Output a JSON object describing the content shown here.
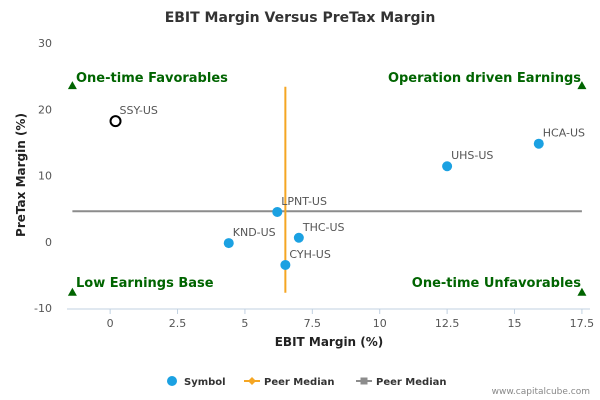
{
  "chart_data": {
    "type": "scatter",
    "title": "EBIT Margin Versus PreTax Margin",
    "xlabel": "EBIT Margin (%)",
    "ylabel": "PreTax Margin (%)",
    "xlim": [
      -1.6,
      17.8
    ],
    "ylim": [
      -10,
      30
    ],
    "xticks": [
      0,
      2.5,
      5,
      7.5,
      10,
      12.5,
      15,
      17.5
    ],
    "xtick_labels": [
      "0",
      "2.5",
      "5",
      "7.5",
      "10",
      "12.5",
      "15",
      "17.5"
    ],
    "yticks": [
      -10,
      0,
      10,
      20,
      30
    ],
    "ytick_labels": [
      "-10",
      "0",
      "10",
      "20",
      "30"
    ],
    "grid": false,
    "points": [
      {
        "label": "SSY-US",
        "x": 0.2,
        "y": 18.2,
        "style": "hollow"
      },
      {
        "label": "HCA-US",
        "x": 15.9,
        "y": 14.8,
        "style": "filled"
      },
      {
        "label": "UHS-US",
        "x": 12.5,
        "y": 11.4,
        "style": "filled"
      },
      {
        "label": "LPNT-US",
        "x": 6.2,
        "y": 4.5,
        "style": "filled"
      },
      {
        "label": "THC-US",
        "x": 7.0,
        "y": 0.6,
        "style": "filled"
      },
      {
        "label": "KND-US",
        "x": 4.4,
        "y": -0.2,
        "style": "filled"
      },
      {
        "label": "CYH-US",
        "x": 6.5,
        "y": -3.5,
        "style": "filled"
      }
    ],
    "peer_median_x": 6.5,
    "peer_median_x_range": [
      -7.7,
      23.4
    ],
    "peer_median_y": 4.6,
    "quadrants": {
      "top_left": "One-time Favorables",
      "top_right": "Operation driven Earnings",
      "bottom_left": "Low Earnings Base",
      "bottom_right": "One-time Unfavorables"
    },
    "legend": [
      {
        "label": "Symbol",
        "marker": "circle",
        "color": "#1BA1E2"
      },
      {
        "label": "Peer Median",
        "marker": "diamond-line",
        "color": "#F5A623"
      },
      {
        "label": "Peer Median",
        "marker": "square-line",
        "color": "#8C8C8C"
      }
    ],
    "legend_position": "bottom-center",
    "colors": {
      "symbol": "#1BA1E2",
      "median_x": "#F5A623",
      "median_y": "#8C8C8C",
      "quadrant": "#006400"
    }
  },
  "footer": {
    "credit": "www.capitalcube.com"
  }
}
